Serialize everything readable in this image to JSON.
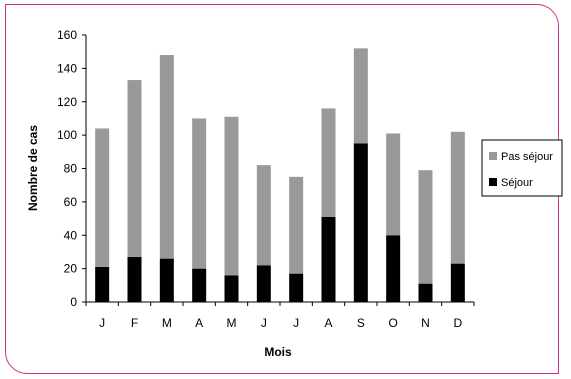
{
  "chart_data": {
    "type": "bar",
    "stacked": true,
    "categories": [
      "J",
      "F",
      "M",
      "A",
      "M",
      "J",
      "J",
      "A",
      "S",
      "O",
      "N",
      "D"
    ],
    "series": [
      {
        "name": "Séjour",
        "color": "#000000",
        "values": [
          21,
          27,
          26,
          20,
          16,
          22,
          17,
          51,
          95,
          40,
          11,
          23
        ]
      },
      {
        "name": "Pas séjour",
        "color": "#999999",
        "values": [
          83,
          106,
          122,
          90,
          95,
          60,
          58,
          65,
          57,
          61,
          68,
          79
        ]
      }
    ],
    "legend_order": [
      "Pas séjour",
      "Séjour"
    ],
    "title": "",
    "xlabel": "Mois",
    "ylabel": "Nombre de cas",
    "ylim": [
      0,
      160
    ],
    "yticks": [
      0,
      20,
      40,
      60,
      80,
      100,
      120,
      140,
      160
    ],
    "grid": false,
    "legend_position": "right"
  }
}
